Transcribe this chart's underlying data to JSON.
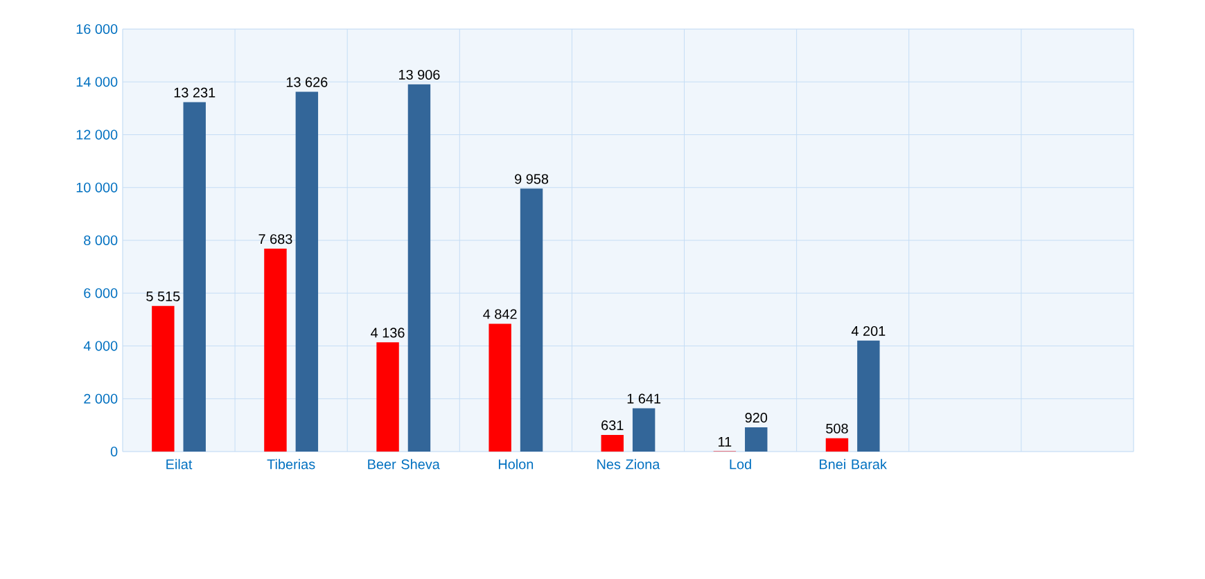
{
  "chart_data": {
    "type": "bar",
    "categories": [
      "Eilat",
      "Tiberias",
      "Beer Sheva",
      "Holon",
      "Nes Ziona",
      "Lod",
      "Bnei Barak",
      null,
      null
    ],
    "series": [
      {
        "color": "#ff0000",
        "values": [
          5515,
          7683,
          4136,
          4842,
          631,
          11,
          508,
          null,
          null
        ],
        "value_labels": [
          "5 515",
          "7 683",
          "4 136",
          "4 842",
          "631",
          "11",
          "508",
          null,
          null
        ]
      },
      {
        "color": "#336699",
        "values": [
          13231,
          13626,
          13906,
          9958,
          1641,
          920,
          4201,
          null,
          null
        ],
        "value_labels": [
          "13 231",
          "13 626",
          "13 906",
          "9 958",
          "1 641",
          "920",
          "4 201",
          null,
          null
        ]
      }
    ],
    "ylim": [
      0,
      16000
    ],
    "yticks": [
      {
        "value": 0,
        "label": "0"
      },
      {
        "value": 2000,
        "label": "2 000"
      },
      {
        "value": 4000,
        "label": "4 000"
      },
      {
        "value": 6000,
        "label": "6 000"
      },
      {
        "value": 8000,
        "label": "8 000"
      },
      {
        "value": 10000,
        "label": "10 000"
      },
      {
        "value": 12000,
        "label": "12 000"
      },
      {
        "value": 14000,
        "label": "14 000"
      },
      {
        "value": 16000,
        "label": "16 000"
      }
    ],
    "grid": true
  }
}
